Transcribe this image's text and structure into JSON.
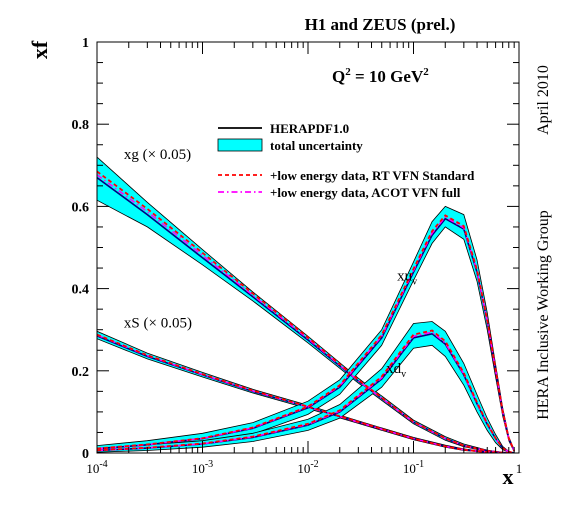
{
  "chart_data": {
    "type": "line",
    "title": "H1 and ZEUS (prel.)",
    "annotation": "Q",
    "annotation_sup": "2",
    "annotation_rest": " = 10 GeV",
    "annotation_sup2": "2",
    "ylabel": "xf",
    "xlabel": "x",
    "side_label_date": "April 2010",
    "side_label_group": "HERA Inclusive Working Group",
    "x_scale": "log",
    "xlim": [
      0.0001,
      1
    ],
    "ylim": [
      0,
      1
    ],
    "grid": false,
    "legend_position": "top-right",
    "y_ticks": [
      "0",
      "0.2",
      "0.4",
      "0.6",
      "0.8",
      "1"
    ],
    "y_tick_values": [
      0,
      0.2,
      0.4,
      0.6,
      0.8,
      1
    ],
    "x_ticks": [
      {
        "value": 0.0001,
        "base": "10",
        "exp": "-4"
      },
      {
        "value": 0.001,
        "base": "10",
        "exp": "-3"
      },
      {
        "value": 0.01,
        "base": "10",
        "exp": "-2"
      },
      {
        "value": 0.1,
        "base": "10",
        "exp": "-1"
      },
      {
        "value": 1,
        "base": "1",
        "exp": ""
      }
    ],
    "legend": [
      {
        "label": "HERAPDF1.0",
        "style": "solid",
        "color": "#000000"
      },
      {
        "label": "total uncertainty",
        "style": "band",
        "color": "#00ffff"
      },
      {
        "label": "+low energy data, RT VFN Standard",
        "style": "dashed",
        "color": "#ff0000"
      },
      {
        "label": "+low energy data, ACOT VFN full",
        "style": "dashdot",
        "color": "#ff00ff"
      }
    ],
    "curve_labels": [
      {
        "id": "xg",
        "text": "xg (× 0.05)",
        "x": 0.00018,
        "y": 0.715
      },
      {
        "id": "xS",
        "text": "xS (× 0.05)",
        "x": 0.00018,
        "y": 0.305
      },
      {
        "id": "xuv",
        "text": "xu",
        "sub": "v",
        "x": 0.07,
        "y": 0.42
      },
      {
        "id": "xdv",
        "text": "xd",
        "sub": "v",
        "x": 0.055,
        "y": 0.195
      }
    ],
    "series": [
      {
        "name": "xg (× 0.05)",
        "x": [
          0.0001,
          0.0003,
          0.001,
          0.003,
          0.01,
          0.03,
          0.1,
          0.2,
          0.3,
          0.5,
          0.7,
          0.9
        ],
        "y": [
          0.67,
          0.58,
          0.475,
          0.38,
          0.275,
          0.175,
          0.075,
          0.035,
          0.018,
          0.005,
          0.001,
          0.0
        ],
        "y_red": [
          0.685,
          0.594,
          0.487,
          0.388,
          0.281,
          0.178,
          0.076,
          0.036,
          0.018,
          0.005,
          0.001,
          0.0
        ],
        "y_mag": [
          0.677,
          0.587,
          0.481,
          0.384,
          0.278,
          0.176,
          0.075,
          0.035,
          0.018,
          0.005,
          0.001,
          0.0
        ],
        "lo": [
          0.615,
          0.55,
          0.458,
          0.37,
          0.268,
          0.17,
          0.071,
          0.031,
          0.015,
          0.004,
          0.0005,
          0.0
        ],
        "hi": [
          0.72,
          0.61,
          0.495,
          0.392,
          0.284,
          0.182,
          0.08,
          0.04,
          0.022,
          0.007,
          0.0015,
          0.0
        ]
      },
      {
        "name": "xS (× 0.05)",
        "x": [
          0.0001,
          0.0003,
          0.001,
          0.003,
          0.01,
          0.03,
          0.1,
          0.2,
          0.3,
          0.5,
          0.7,
          0.9
        ],
        "y": [
          0.285,
          0.235,
          0.19,
          0.15,
          0.112,
          0.075,
          0.035,
          0.016,
          0.008,
          0.002,
          0.0005,
          0.0
        ],
        "y_red": [
          0.288,
          0.238,
          0.192,
          0.152,
          0.113,
          0.076,
          0.035,
          0.016,
          0.008,
          0.002,
          0.0005,
          0.0
        ],
        "y_mag": [
          0.287,
          0.237,
          0.191,
          0.151,
          0.112,
          0.075,
          0.035,
          0.016,
          0.008,
          0.002,
          0.0005,
          0.0
        ],
        "lo": [
          0.278,
          0.229,
          0.185,
          0.146,
          0.108,
          0.072,
          0.032,
          0.014,
          0.006,
          0.0015,
          0.0003,
          0.0
        ],
        "hi": [
          0.296,
          0.243,
          0.196,
          0.155,
          0.116,
          0.078,
          0.038,
          0.019,
          0.01,
          0.003,
          0.0008,
          0.0
        ]
      },
      {
        "name": "xu",
        "x": [
          0.0001,
          0.0003,
          0.001,
          0.003,
          0.01,
          0.02,
          0.05,
          0.1,
          0.15,
          0.2,
          0.3,
          0.4,
          0.5,
          0.6,
          0.7,
          0.8,
          0.9
        ],
        "y": [
          0.01,
          0.02,
          0.035,
          0.06,
          0.11,
          0.16,
          0.28,
          0.44,
          0.53,
          0.57,
          0.545,
          0.44,
          0.32,
          0.2,
          0.1,
          0.035,
          0.005
        ],
        "y_red": [
          0.011,
          0.021,
          0.036,
          0.062,
          0.113,
          0.165,
          0.287,
          0.448,
          0.54,
          0.578,
          0.552,
          0.446,
          0.324,
          0.203,
          0.101,
          0.036,
          0.005
        ],
        "y_mag": [
          0.0105,
          0.0205,
          0.0355,
          0.061,
          0.112,
          0.163,
          0.284,
          0.444,
          0.535,
          0.574,
          0.548,
          0.443,
          0.322,
          0.202,
          0.1,
          0.035,
          0.005
        ],
        "lo": [
          0.004,
          0.01,
          0.022,
          0.046,
          0.094,
          0.143,
          0.262,
          0.42,
          0.51,
          0.55,
          0.52,
          0.418,
          0.3,
          0.185,
          0.09,
          0.03,
          0.003
        ],
        "hi": [
          0.018,
          0.03,
          0.048,
          0.074,
          0.126,
          0.178,
          0.3,
          0.465,
          0.563,
          0.6,
          0.58,
          0.47,
          0.342,
          0.215,
          0.11,
          0.04,
          0.007
        ]
      },
      {
        "name": "xd",
        "x": [
          0.0001,
          0.0003,
          0.001,
          0.003,
          0.01,
          0.02,
          0.05,
          0.1,
          0.15,
          0.2,
          0.3,
          0.4,
          0.5,
          0.6,
          0.7,
          0.8,
          0.9
        ],
        "y": [
          0.006,
          0.012,
          0.022,
          0.038,
          0.068,
          0.1,
          0.18,
          0.28,
          0.29,
          0.265,
          0.19,
          0.12,
          0.07,
          0.035,
          0.012,
          0.003,
          0.0
        ],
        "y_red": [
          0.0065,
          0.013,
          0.023,
          0.04,
          0.071,
          0.104,
          0.186,
          0.288,
          0.298,
          0.272,
          0.195,
          0.123,
          0.072,
          0.036,
          0.012,
          0.003,
          0.0
        ],
        "y_mag": [
          0.0062,
          0.0125,
          0.0225,
          0.039,
          0.0695,
          0.102,
          0.183,
          0.284,
          0.294,
          0.268,
          0.192,
          0.121,
          0.071,
          0.035,
          0.012,
          0.003,
          0.0
        ],
        "lo": [
          0.002,
          0.006,
          0.014,
          0.028,
          0.055,
          0.085,
          0.16,
          0.255,
          0.262,
          0.235,
          0.165,
          0.1,
          0.055,
          0.025,
          0.008,
          0.002,
          0.0
        ],
        "hi": [
          0.012,
          0.02,
          0.03,
          0.048,
          0.082,
          0.118,
          0.205,
          0.315,
          0.32,
          0.296,
          0.218,
          0.142,
          0.085,
          0.045,
          0.016,
          0.004,
          0.0
        ]
      }
    ]
  }
}
